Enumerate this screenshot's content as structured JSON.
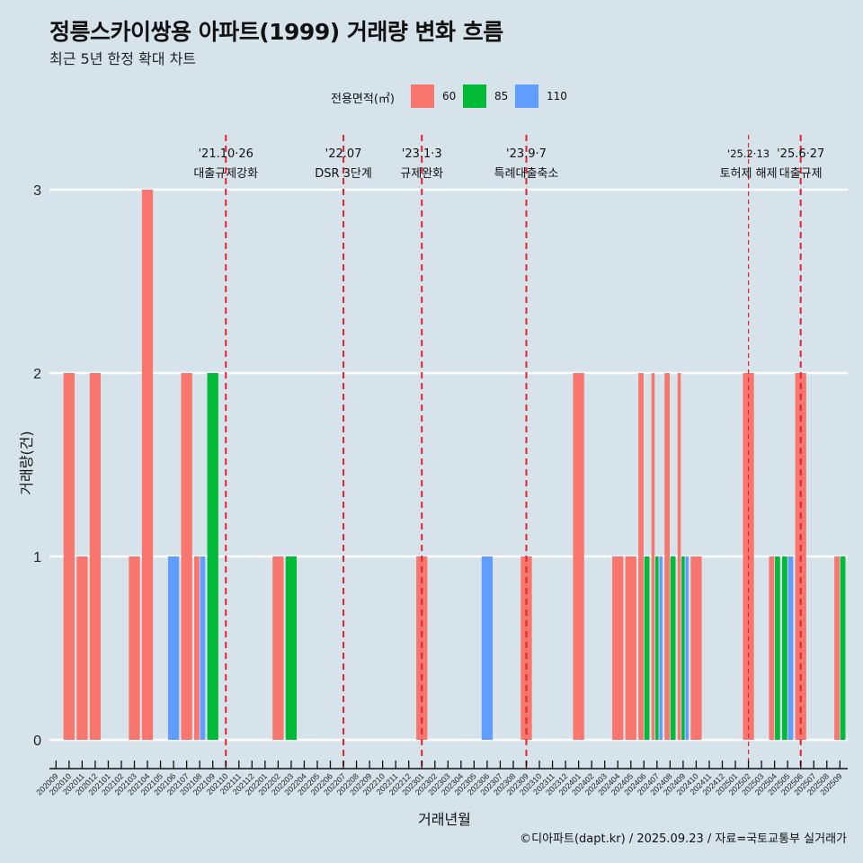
{
  "title": "정릉스카이쌍용 아파트(1999) 거래량 변화 흐름",
  "subtitle": "최근 5년 한정 확대 차트",
  "caption": "©디아파트(dapt.kr) / 2025.09.23 / 자료=국토교통부 실거래가",
  "colors": {
    "background": "#d6e3ea",
    "60": "#f8766d",
    "85": "#00ba38",
    "110": "#619cff",
    "event_line": "#e8202a",
    "grid": "#ffffff"
  },
  "legend": {
    "title": "전용면적(㎡)",
    "items": [
      {
        "label": "60",
        "color": "#f8766d"
      },
      {
        "label": "85",
        "color": "#00ba38"
      },
      {
        "label": "110",
        "color": "#619cff"
      }
    ]
  },
  "chart_data": {
    "type": "bar",
    "title": "정릉스카이쌍용 아파트(1999) 거래량 변화 흐름",
    "xlabel": "거래년월",
    "ylabel": "거래량(건)",
    "ylim": [
      0,
      3
    ],
    "yticks": [
      "0",
      "1",
      "2",
      "3"
    ],
    "grid": true,
    "legend_position": "top",
    "position": "dodge",
    "categories": [
      "202009",
      "202010",
      "202011",
      "202012",
      "202101",
      "202102",
      "202103",
      "202104",
      "202105",
      "202106",
      "202107",
      "202108",
      "202109",
      "202110",
      "202111",
      "202112",
      "202201",
      "202202",
      "202203",
      "202204",
      "202205",
      "202206",
      "202207",
      "202208",
      "202209",
      "202210",
      "202211",
      "202212",
      "202301",
      "202302",
      "202303",
      "202304",
      "202305",
      "202306",
      "202307",
      "202308",
      "202309",
      "202310",
      "202311",
      "202312",
      "202401",
      "202402",
      "202403",
      "202404",
      "202405",
      "202406",
      "202407",
      "202408",
      "202409",
      "202410",
      "202411",
      "202412",
      "202501",
      "202502",
      "202503",
      "202504",
      "202505",
      "202506",
      "202507",
      "202508",
      "202509"
    ],
    "series": [
      {
        "name": "60",
        "values": {
          "202010": 2,
          "202011": 1,
          "202012": 2,
          "202103": 1,
          "202104": 3,
          "202107": 2,
          "202108": 1,
          "202202": 1,
          "202301": 1,
          "202309": 1,
          "202401": 2,
          "202404": 1,
          "202405": 1,
          "202406": 2,
          "202407": 2,
          "202408": 2,
          "202409": 2,
          "202410": 1,
          "202502": 2,
          "202504": 1,
          "202506": 2,
          "202509": 1
        }
      },
      {
        "name": "85",
        "values": {
          "202109": 2,
          "202203": 1,
          "202406": 1,
          "202407": 1,
          "202408": 1,
          "202409": 1,
          "202504": 1,
          "202505": 1,
          "202509": 1
        }
      },
      {
        "name": "110",
        "values": {
          "202106": 1,
          "202108": 1,
          "202306": 1,
          "202407": 1,
          "202409": 1,
          "202505": 1
        }
      }
    ],
    "events": [
      {
        "month": "202110",
        "date": "'21.10·26",
        "label": "대출규제강화",
        "style": "thick"
      },
      {
        "month": "202207",
        "date": "'22.07",
        "label": "DSR 3단계",
        "style": "thick"
      },
      {
        "month": "202301",
        "date": "'23.1·3",
        "label": "규제완화",
        "style": "thick"
      },
      {
        "month": "202309",
        "date": "'23.9·7",
        "label": "특례대출축소",
        "style": "thick"
      },
      {
        "month": "202502",
        "date": "'25.2·13",
        "label": "토허제 해제",
        "style": "thin"
      },
      {
        "month": "202506",
        "date": "'25.6·27",
        "label": "대출규제",
        "style": "thick"
      }
    ]
  }
}
